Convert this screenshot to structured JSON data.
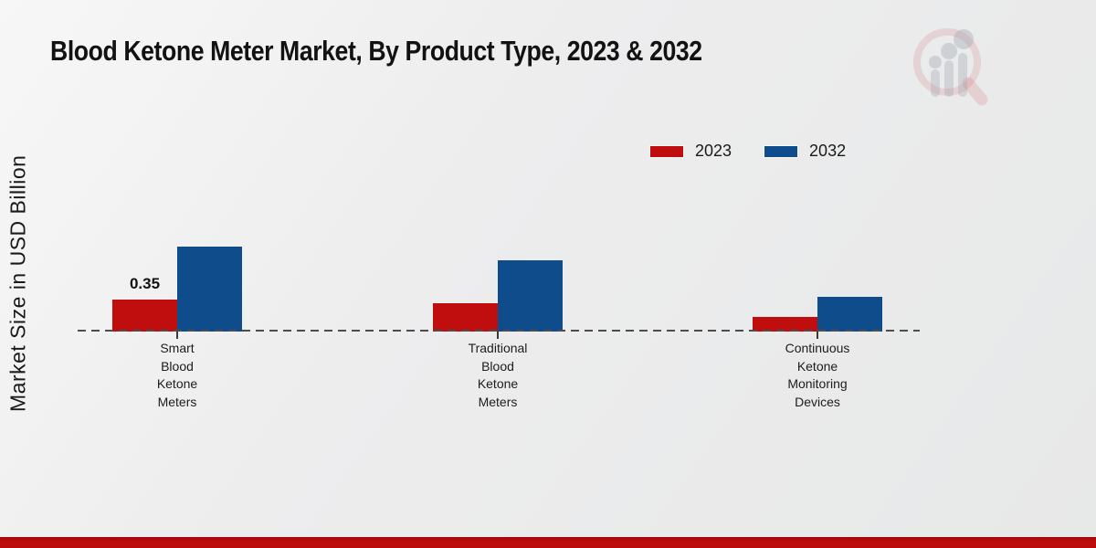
{
  "title": "Blood Ketone Meter Market, By Product Type, 2023 & 2032",
  "ylabel": "Market Size in USD Billion",
  "colors": {
    "series_2023": "#c00d0d",
    "series_2032": "#0f4c8c",
    "baseline": "#4d4d4d",
    "bottom_strip": "#b90c0b",
    "background": "#ededee"
  },
  "icons": {
    "watermark": "magnifier-bar-chart-logo-icon"
  },
  "chart_data": {
    "type": "bar",
    "title": "Blood Ketone Meter Market, By Product Type, 2023 & 2032",
    "xlabel": "",
    "ylabel": "Market Size in USD Billion",
    "categories": [
      "Smart Blood Ketone Meters",
      "Traditional Blood Ketone Meters",
      "Continuous Ketone Monitoring Devices"
    ],
    "category_lines": [
      [
        "Smart",
        "Blood",
        "Ketone",
        "Meters"
      ],
      [
        "Traditional",
        "Blood",
        "Ketone",
        "Meters"
      ],
      [
        "Continuous",
        "Ketone",
        "Monitoring",
        "Devices"
      ]
    ],
    "series": [
      {
        "name": "2023",
        "color": "#c00d0d",
        "values": [
          0.35,
          0.31,
          0.16
        ],
        "labels": [
          "0.35",
          "",
          ""
        ]
      },
      {
        "name": "2032",
        "color": "#0f4c8c",
        "values": [
          0.93,
          0.78,
          0.38
        ],
        "labels": [
          "",
          "",
          ""
        ]
      }
    ],
    "ylim": [
      0,
      1.0
    ],
    "grid": false,
    "legend_position": "upper-right",
    "baseline_style": "dashed",
    "units": "USD Billion"
  }
}
